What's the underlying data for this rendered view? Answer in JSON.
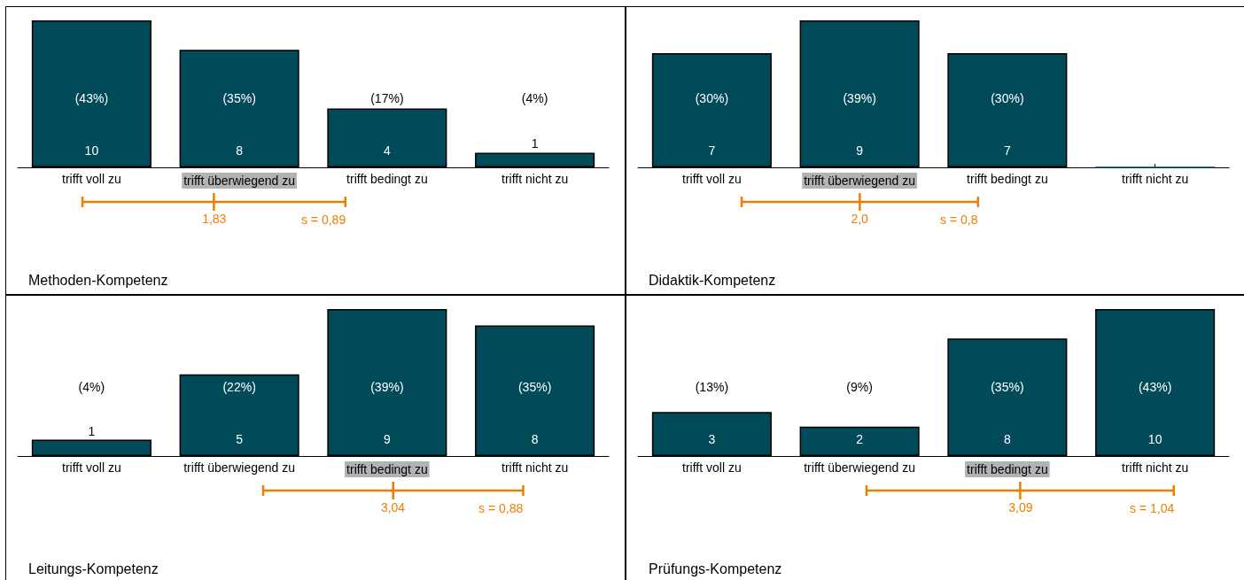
{
  "chart_data": [
    {
      "type": "bar",
      "title": "Methoden-Kompetenz",
      "categories": [
        "trifft voll zu",
        "trifft überwiegend zu",
        "trifft bedingt zu",
        "trifft nicht zu"
      ],
      "values": [
        10,
        8,
        4,
        1
      ],
      "value_labels": [
        "10",
        "8",
        "4",
        "1"
      ],
      "color": "#004a5a",
      "annotations": [
        "1,83",
        "s = 0,89",
        "(43%)",
        "(35%)",
        "(17%)",
        "(4%)"
      ]
    },
    {
      "type": "bar",
      "title": "Didaktik-Kompetenz",
      "categories": [
        "trifft voll zu",
        "trifft überwiegend zu",
        "trifft bedingt zu",
        "trifft nicht zu"
      ],
      "values": [
        7,
        9,
        7,
        0
      ],
      "value_labels": [
        "7",
        "9",
        "7",
        null
      ],
      "color": "#004a5a",
      "annotations": [
        "2,0",
        "s = 0,8",
        "(30%)",
        "(39%)",
        "(30%)"
      ]
    },
    {
      "type": "bar",
      "title": "Leitungs-Kompetenz",
      "categories": [
        "trifft voll zu",
        "trifft überwiegend zu",
        "trifft bedingt zu",
        "trifft nicht zu"
      ],
      "values": [
        1,
        5,
        9,
        8
      ],
      "value_labels": [
        "1",
        "5",
        "9",
        "8"
      ],
      "color": "#004a5a",
      "annotations": [
        "3,04",
        "s = 0,88",
        "(4%)",
        "(22%)",
        "(39%)",
        "(35%)"
      ]
    },
    {
      "type": "bar",
      "title": "Prüfungs-Kompetenz",
      "categories": [
        "trifft voll zu",
        "trifft überwiegend zu",
        "trifft bedingt zu",
        "trifft nicht zu"
      ],
      "values": [
        3,
        2,
        8,
        10
      ],
      "value_labels": [
        "3",
        "2",
        "8",
        "10"
      ],
      "color": "#004a5a",
      "annotations": [
        "3,09",
        "s = 1,04",
        "(13%)",
        "(9%)",
        "(35%)",
        "(43%)"
      ]
    }
  ]
}
